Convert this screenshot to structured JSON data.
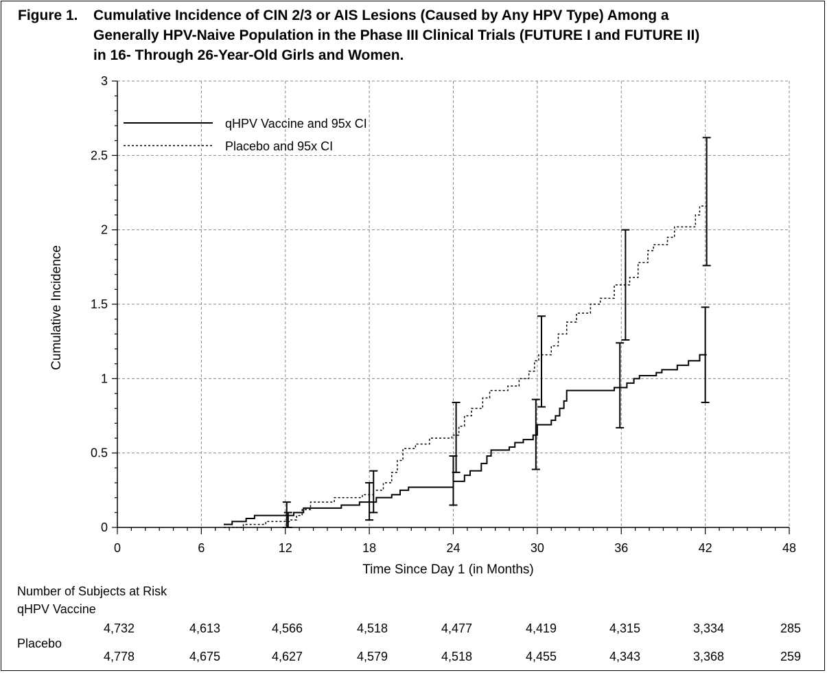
{
  "figure": {
    "title_prefix": "Figure 1.",
    "title_lines": [
      "Cumulative Incidence of CIN 2/3 or AIS Lesions (Caused by Any HPV Type) Among a",
      "Generally HPV-Naive Population in the Phase III Clinical Trials (FUTURE I and FUTURE II)",
      "in 16- Through 26-Year-Old Girls and Women."
    ]
  },
  "chart_data": {
    "type": "line",
    "xlabel": "Time Since Day 1 (in Months)",
    "ylabel": "Cumulative Incidence",
    "xlim": [
      0,
      48
    ],
    "ylim": [
      0,
      3
    ],
    "x_ticks": [
      "0",
      "6",
      "12",
      "18",
      "24",
      "30",
      "36",
      "42",
      "48"
    ],
    "y_ticks": [
      "0",
      "0.5",
      "1",
      "1.5",
      "2",
      "2.5",
      "3"
    ],
    "grid": true,
    "legend_position": "top-left",
    "series": [
      {
        "name": "qHPV Vaccine and 95x CI",
        "style": "solid",
        "steps": [
          [
            7.6,
            0.02
          ],
          [
            8.2,
            0.04
          ],
          [
            9.2,
            0.06
          ],
          [
            9.8,
            0.08
          ],
          [
            12.2,
            0.08
          ],
          [
            12.6,
            0.1
          ],
          [
            13.3,
            0.13
          ],
          [
            16.0,
            0.15
          ],
          [
            17.3,
            0.17
          ],
          [
            18.5,
            0.2
          ],
          [
            19.6,
            0.22
          ],
          [
            20.2,
            0.25
          ],
          [
            20.8,
            0.27
          ],
          [
            23.9,
            0.27
          ],
          [
            24.0,
            0.31
          ],
          [
            24.8,
            0.35
          ],
          [
            25.2,
            0.38
          ],
          [
            26.0,
            0.43
          ],
          [
            26.4,
            0.48
          ],
          [
            26.7,
            0.52
          ],
          [
            28.0,
            0.54
          ],
          [
            28.4,
            0.57
          ],
          [
            29.0,
            0.59
          ],
          [
            29.7,
            0.62
          ],
          [
            30.0,
            0.69
          ],
          [
            31.0,
            0.72
          ],
          [
            31.3,
            0.75
          ],
          [
            31.6,
            0.8
          ],
          [
            31.9,
            0.85
          ],
          [
            32.1,
            0.92
          ],
          [
            35.5,
            0.94
          ],
          [
            36.4,
            0.97
          ],
          [
            36.9,
            1.0
          ],
          [
            37.3,
            1.02
          ],
          [
            38.5,
            1.04
          ],
          [
            38.9,
            1.06
          ],
          [
            40.0,
            1.09
          ],
          [
            40.8,
            1.12
          ],
          [
            41.6,
            1.16
          ],
          [
            42.1,
            1.16
          ]
        ],
        "ci": [
          {
            "x": 12.1,
            "low": 0.0,
            "high": 0.17
          },
          {
            "x": 18.0,
            "low": 0.05,
            "high": 0.3
          },
          {
            "x": 24.0,
            "low": 0.15,
            "high": 0.48
          },
          {
            "x": 29.9,
            "low": 0.39,
            "high": 0.86
          },
          {
            "x": 35.9,
            "low": 0.67,
            "high": 1.24
          },
          {
            "x": 42.0,
            "low": 0.84,
            "high": 1.48
          }
        ]
      },
      {
        "name": "Placebo and 95x CI",
        "style": "dashed",
        "steps": [
          [
            7.6,
            0.0
          ],
          [
            9.0,
            0.02
          ],
          [
            10.6,
            0.04
          ],
          [
            12.4,
            0.05
          ],
          [
            12.8,
            0.08
          ],
          [
            13.2,
            0.12
          ],
          [
            13.8,
            0.17
          ],
          [
            15.5,
            0.2
          ],
          [
            17.5,
            0.22
          ],
          [
            18.3,
            0.25
          ],
          [
            19.0,
            0.3
          ],
          [
            19.6,
            0.37
          ],
          [
            20.0,
            0.45
          ],
          [
            20.4,
            0.53
          ],
          [
            21.3,
            0.56
          ],
          [
            22.3,
            0.6
          ],
          [
            23.9,
            0.62
          ],
          [
            24.4,
            0.68
          ],
          [
            24.8,
            0.75
          ],
          [
            25.3,
            0.8
          ],
          [
            26.1,
            0.87
          ],
          [
            26.6,
            0.92
          ],
          [
            27.9,
            0.95
          ],
          [
            28.7,
            1.0
          ],
          [
            29.4,
            1.05
          ],
          [
            29.8,
            1.12
          ],
          [
            30.1,
            1.16
          ],
          [
            31.0,
            1.22
          ],
          [
            31.5,
            1.3
          ],
          [
            32.1,
            1.38
          ],
          [
            32.8,
            1.44
          ],
          [
            33.8,
            1.5
          ],
          [
            34.5,
            1.54
          ],
          [
            35.5,
            1.63
          ],
          [
            36.6,
            1.68
          ],
          [
            37.2,
            1.78
          ],
          [
            37.9,
            1.86
          ],
          [
            38.3,
            1.9
          ],
          [
            39.3,
            1.95
          ],
          [
            39.8,
            2.02
          ],
          [
            41.3,
            2.1
          ],
          [
            41.6,
            2.16
          ],
          [
            42.1,
            2.22
          ]
        ],
        "ci": [
          {
            "x": 12.2,
            "low": 0.0,
            "high": 0.1
          },
          {
            "x": 18.3,
            "low": 0.1,
            "high": 0.38
          },
          {
            "x": 24.2,
            "low": 0.37,
            "high": 0.84
          },
          {
            "x": 30.3,
            "low": 0.81,
            "high": 1.42
          },
          {
            "x": 36.3,
            "low": 1.26,
            "high": 2.0
          },
          {
            "x": 42.1,
            "low": 1.76,
            "high": 2.62
          }
        ]
      }
    ]
  },
  "at_risk": {
    "heading": "Number of Subjects at Risk",
    "vaccine_label": "qHPV Vaccine",
    "placebo_label": "Placebo",
    "vaccine": [
      "4,732",
      "4,613",
      "4,566",
      "4,518",
      "4,477",
      "4,419",
      "4,315",
      "3,334",
      "285"
    ],
    "placebo": [
      "4,778",
      "4,675",
      "4,627",
      "4,579",
      "4,518",
      "4,455",
      "4,343",
      "3,368",
      "259"
    ]
  }
}
